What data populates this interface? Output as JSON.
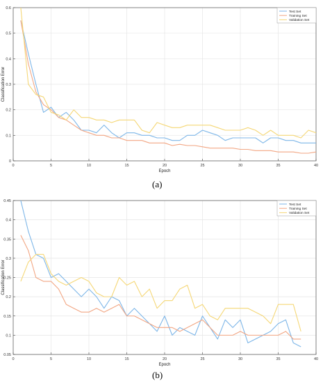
{
  "chart_data": [
    {
      "panel_label": "(a)",
      "type": "line",
      "xlabel": "Epoch",
      "ylabel": "Classification Error",
      "xlim": [
        0,
        40
      ],
      "ylim": [
        0,
        0.6
      ],
      "xticks": [
        "0",
        "5",
        "10",
        "15",
        "20",
        "25",
        "30",
        "35",
        "40"
      ],
      "yticks": [
        "0",
        "0.1",
        "0.2",
        "0.3",
        "0.4",
        "0.5",
        "0.6"
      ],
      "grid": true,
      "legend": "top-right",
      "x": [
        1,
        2,
        3,
        4,
        5,
        6,
        7,
        8,
        9,
        10,
        11,
        12,
        13,
        14,
        15,
        16,
        17,
        18,
        19,
        20,
        21,
        22,
        23,
        24,
        25,
        26,
        27,
        28,
        29,
        30,
        31,
        32,
        33,
        34,
        35,
        36,
        37,
        38,
        39,
        40
      ],
      "series": [
        {
          "name": "Test Set",
          "color": "#7db6e8",
          "values": [
            0.55,
            0.42,
            0.3,
            0.19,
            0.21,
            0.17,
            0.19,
            0.16,
            0.12,
            0.12,
            0.11,
            0.14,
            0.11,
            0.09,
            0.11,
            0.11,
            0.1,
            0.1,
            0.09,
            0.09,
            0.08,
            0.08,
            0.1,
            0.1,
            0.12,
            0.11,
            0.1,
            0.08,
            0.09,
            0.09,
            0.09,
            0.09,
            0.07,
            0.09,
            0.09,
            0.08,
            0.08,
            0.07,
            0.07,
            0.07
          ]
        },
        {
          "name": "Training Set",
          "color": "#f2a683",
          "values": [
            0.55,
            0.38,
            0.27,
            0.22,
            0.2,
            0.17,
            0.16,
            0.14,
            0.12,
            0.11,
            0.1,
            0.1,
            0.09,
            0.09,
            0.08,
            0.08,
            0.08,
            0.07,
            0.07,
            0.07,
            0.06,
            0.065,
            0.06,
            0.06,
            0.055,
            0.05,
            0.05,
            0.05,
            0.05,
            0.045,
            0.045,
            0.04,
            0.04,
            0.04,
            0.035,
            0.035,
            0.035,
            0.03,
            0.03,
            0.035
          ]
        },
        {
          "name": "Validation Set",
          "color": "#f5d776",
          "values": [
            0.6,
            0.3,
            0.26,
            0.25,
            0.19,
            0.18,
            0.16,
            0.2,
            0.17,
            0.17,
            0.16,
            0.16,
            0.15,
            0.16,
            0.16,
            0.16,
            0.12,
            0.11,
            0.15,
            0.14,
            0.13,
            0.13,
            0.14,
            0.14,
            0.14,
            0.14,
            0.13,
            0.12,
            0.12,
            0.12,
            0.13,
            0.12,
            0.1,
            0.12,
            0.1,
            0.1,
            0.1,
            0.09,
            0.12,
            0.11
          ]
        }
      ]
    },
    {
      "panel_label": "(b)",
      "type": "line",
      "xlabel": "Epoch",
      "ylabel": "Classification Error",
      "xlim": [
        0,
        40
      ],
      "ylim": [
        0.05,
        0.45
      ],
      "xticks": [
        "0",
        "5",
        "10",
        "15",
        "20",
        "25",
        "30",
        "35",
        "40"
      ],
      "yticks": [
        "0.05",
        "0.1",
        "0.15",
        "0.2",
        "0.25",
        "0.3",
        "0.35",
        "0.4",
        "0.45"
      ],
      "grid": true,
      "legend": "top-right",
      "x": [
        1,
        2,
        3,
        4,
        5,
        6,
        7,
        8,
        9,
        10,
        11,
        12,
        13,
        14,
        15,
        16,
        17,
        18,
        19,
        20,
        21,
        22,
        23,
        24,
        25,
        26,
        27,
        28,
        29,
        30,
        31,
        32,
        33,
        34,
        35,
        36,
        37,
        38
      ],
      "series": [
        {
          "name": "Test Set",
          "color": "#7db6e8",
          "values": [
            0.45,
            0.37,
            0.31,
            0.3,
            0.25,
            0.26,
            0.24,
            0.22,
            0.2,
            0.22,
            0.2,
            0.17,
            0.2,
            0.19,
            0.15,
            0.17,
            0.15,
            0.13,
            0.11,
            0.15,
            0.1,
            0.12,
            0.11,
            0.1,
            0.15,
            0.12,
            0.09,
            0.14,
            0.12,
            0.14,
            0.08,
            0.09,
            0.1,
            0.11,
            0.13,
            0.14,
            0.08,
            0.07
          ]
        },
        {
          "name": "Training Set",
          "color": "#f2a683",
          "values": [
            0.36,
            0.32,
            0.25,
            0.24,
            0.24,
            0.22,
            0.18,
            0.17,
            0.16,
            0.16,
            0.17,
            0.16,
            0.17,
            0.18,
            0.15,
            0.15,
            0.14,
            0.13,
            0.12,
            0.12,
            0.12,
            0.11,
            0.12,
            0.13,
            0.14,
            0.12,
            0.1,
            0.1,
            0.1,
            0.11,
            0.1,
            0.1,
            0.1,
            0.1,
            0.1,
            0.11,
            0.09,
            0.09
          ]
        },
        {
          "name": "Validation Set",
          "color": "#f5d776",
          "values": [
            0.24,
            0.29,
            0.31,
            0.31,
            0.26,
            0.24,
            0.23,
            0.24,
            0.25,
            0.24,
            0.21,
            0.2,
            0.2,
            0.25,
            0.23,
            0.24,
            0.2,
            0.22,
            0.17,
            0.19,
            0.19,
            0.22,
            0.23,
            0.17,
            0.18,
            0.15,
            0.14,
            0.17,
            0.17,
            0.17,
            0.17,
            0.16,
            0.15,
            0.13,
            0.18,
            0.18,
            0.18,
            0.11
          ]
        }
      ]
    }
  ]
}
